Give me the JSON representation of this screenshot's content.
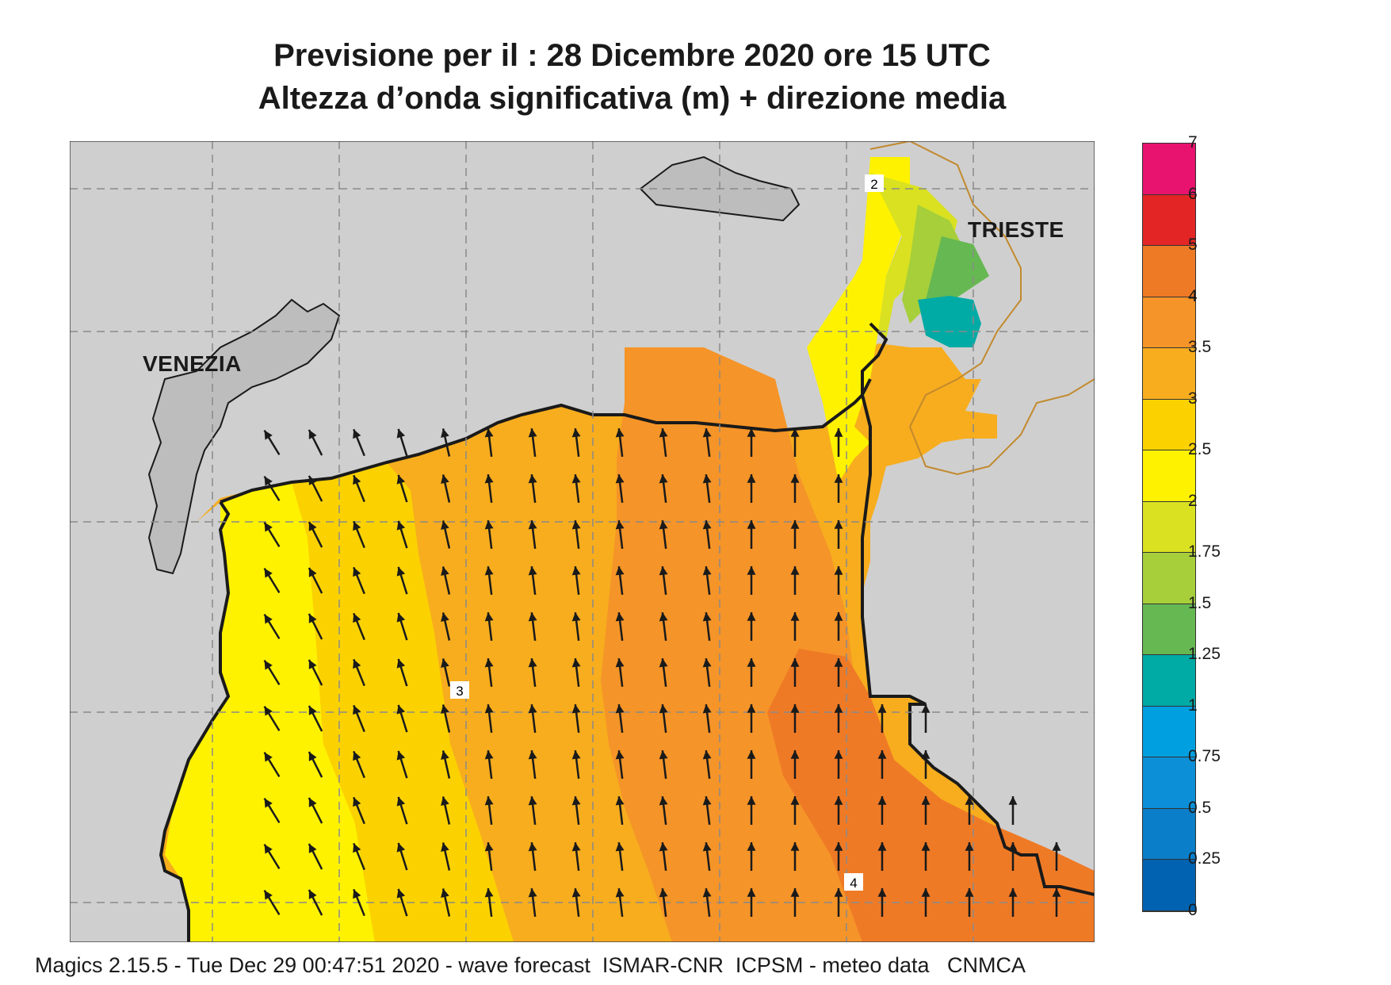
{
  "title": {
    "line1": "Previsione per il  :  28 Dicembre  2020   ore 15 UTC",
    "line2": "Altezza d’onda significativa (m) + direzione media"
  },
  "map": {
    "cities": [
      "VENEZIA",
      "TRIESTE"
    ],
    "contour_labels": [
      "2",
      "3",
      "4"
    ],
    "land_color": "#cfcfcf",
    "coast_color": "#1a1a1a",
    "border_color": "#c28a2e",
    "arrow_color": "#1a1a1a",
    "arrow_direction": "towards north / north-west"
  },
  "legend": {
    "labels": [
      "7",
      "6",
      "5",
      "4",
      "3.5",
      "3",
      "2.5",
      "2",
      "1.75",
      "1.5",
      "1.25",
      "1",
      "0.75",
      "0.5",
      "0.25",
      "0"
    ],
    "colors": [
      "#e8136e",
      "#e32525",
      "#ef7a26",
      "#f59428",
      "#f7ad1e",
      "#fbd200",
      "#fff200",
      "#d9e121",
      "#a6cf3a",
      "#66b852",
      "#00aaa5",
      "#00a0e0",
      "#0c8fd6",
      "#0a7ec8",
      "#0062b0"
    ]
  },
  "footer": "Magics 2.15.5 - Tue Dec 29 00:47:51 2020 - wave forecast  ISMAR-CNR  ICPSM - meteo data   CNMCA"
}
